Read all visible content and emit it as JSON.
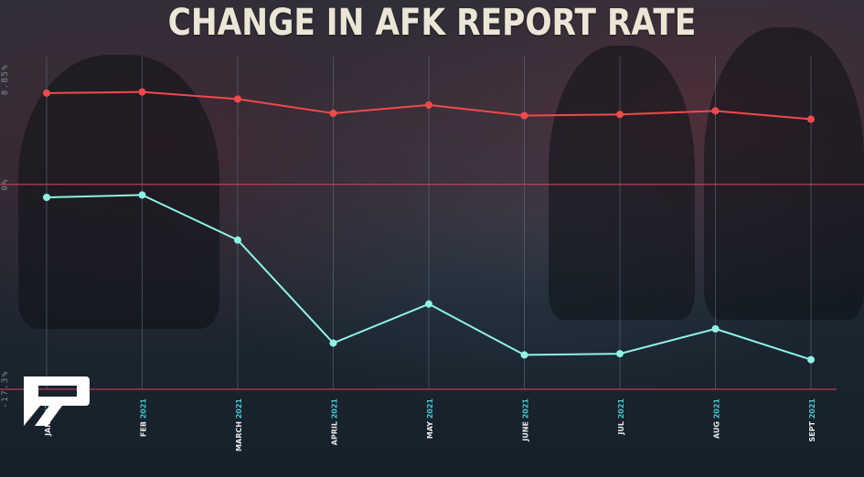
{
  "chart_data": {
    "type": "line",
    "title": "CHANGE IN AFK REPORT RATE",
    "x_labels": [
      {
        "month": "JAN",
        "year": "2021"
      },
      {
        "month": "FEB",
        "year": "2021"
      },
      {
        "month": "MARCH",
        "year": "2021"
      },
      {
        "month": "APRIL",
        "year": "2021"
      },
      {
        "month": "MAY",
        "year": "2021"
      },
      {
        "month": "JUNE",
        "year": "2021"
      },
      {
        "month": "JUL",
        "year": "2021"
      },
      {
        "month": "AUG",
        "year": "2021"
      },
      {
        "month": "SEPT",
        "year": "2021"
      }
    ],
    "y_ticks": [
      {
        "value": 8.85,
        "label": "8.85%"
      },
      {
        "value": 0,
        "label": "0%"
      },
      {
        "value": -17.3,
        "label": "-17.3%"
      }
    ],
    "ylim": [
      -17.3,
      8.85
    ],
    "series": [
      {
        "color": "#f04a4a",
        "values": [
          7.7,
          7.8,
          7.2,
          6.0,
          6.7,
          5.8,
          5.9,
          6.2,
          5.5
        ]
      },
      {
        "color": "#8ff3e6",
        "values": [
          -1.1,
          -0.9,
          -4.7,
          -13.4,
          -10.1,
          -14.4,
          -14.3,
          -12.2,
          -14.8
        ]
      }
    ],
    "grid": true,
    "legend": "none"
  },
  "colors": {
    "title": "#ece6d6",
    "axis_line": "#d9405a",
    "grid": "#5f7480",
    "tick_label": "#7f8c95",
    "year_label": "#48c7d0"
  },
  "logo": {
    "icon": "p-logo-icon"
  }
}
